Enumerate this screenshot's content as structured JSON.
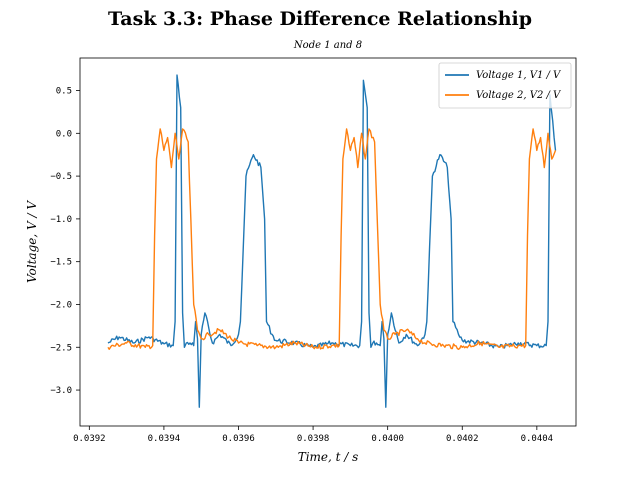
{
  "chart_data": {
    "type": "line",
    "title": "Task 3.3: Phase Difference Relationship",
    "subtitle": "Node 1 and 8",
    "xlabel": "Time, t / s",
    "ylabel": "Voltage, V / V",
    "xlim": [
      0.039175,
      0.040505
    ],
    "ylim": [
      -3.42,
      0.88
    ],
    "xticks": [
      0.0392,
      0.0394,
      0.0396,
      0.0398,
      0.04,
      0.0402,
      0.0404
    ],
    "xtick_labels": [
      "0.0392",
      "0.0394",
      "0.0396",
      "0.0398",
      "0.0400",
      "0.0402",
      "0.0404"
    ],
    "yticks": [
      0.5,
      0.0,
      -0.5,
      -1.0,
      -1.5,
      -2.0,
      -2.5,
      -3.0
    ],
    "ytick_labels": [
      "0.5",
      "0.0",
      "−0.5",
      "−1.0",
      "−1.5",
      "−2.0",
      "−2.5",
      "−3.0"
    ],
    "grid": false,
    "legend_position": "top-right",
    "series": [
      {
        "name": "Voltage 1, V1 / V",
        "color": "#1f77b4",
        "x": [
          0.03925,
          0.03928,
          0.03932,
          0.03936,
          0.0394,
          0.039425,
          0.03943,
          0.039435,
          0.039445,
          0.03945,
          0.039455,
          0.03946,
          0.03947,
          0.03948,
          0.039485,
          0.03949,
          0.039495,
          0.0395,
          0.03951,
          0.03953,
          0.03955,
          0.03958,
          0.0396,
          0.039605,
          0.03962,
          0.03964,
          0.03966,
          0.03967,
          0.039675,
          0.03969,
          0.0397,
          0.03975,
          0.0398,
          0.03985,
          0.0399,
          0.039925,
          0.03993,
          0.039935,
          0.039945,
          0.03995,
          0.039955,
          0.03996,
          0.03997,
          0.03998,
          0.039985,
          0.03999,
          0.039995,
          0.04,
          0.04001,
          0.04003,
          0.04005,
          0.04008,
          0.0401,
          0.040105,
          0.04012,
          0.04014,
          0.04016,
          0.04017,
          0.040175,
          0.04019,
          0.0402,
          0.04025,
          0.0403,
          0.04035,
          0.0404,
          0.040425,
          0.04043,
          0.040435,
          0.04045
        ],
        "values": [
          -2.45,
          -2.38,
          -2.45,
          -2.38,
          -2.46,
          -2.48,
          -2.2,
          0.68,
          0.3,
          -2.1,
          -2.5,
          -2.45,
          -2.45,
          -2.48,
          -2.2,
          -2.4,
          -3.2,
          -2.35,
          -2.1,
          -2.45,
          -2.35,
          -2.48,
          -2.35,
          -2.2,
          -0.5,
          -0.25,
          -0.4,
          -1.0,
          -2.2,
          -2.35,
          -2.42,
          -2.45,
          -2.5,
          -2.45,
          -2.48,
          -2.48,
          -2.2,
          0.62,
          0.3,
          -2.1,
          -2.5,
          -2.45,
          -2.45,
          -2.48,
          -2.2,
          -2.4,
          -3.2,
          -2.35,
          -2.1,
          -2.45,
          -2.35,
          -2.48,
          -2.35,
          -2.2,
          -0.5,
          -0.25,
          -0.4,
          -1.0,
          -2.2,
          -2.35,
          -2.42,
          -2.45,
          -2.5,
          -2.45,
          -2.48,
          -2.48,
          -2.2,
          0.45,
          -0.2
        ]
      },
      {
        "name": "Voltage 2, V2 / V",
        "color": "#ff7f0e",
        "x": [
          0.03925,
          0.0393,
          0.03935,
          0.03937,
          0.039375,
          0.03938,
          0.03939,
          0.0394,
          0.03941,
          0.03942,
          0.03943,
          0.03944,
          0.03945,
          0.039465,
          0.03948,
          0.03949,
          0.0395,
          0.03952,
          0.03955,
          0.03958,
          0.0396,
          0.03965,
          0.0397,
          0.03975,
          0.0398,
          0.03985,
          0.03987,
          0.039875,
          0.03988,
          0.03989,
          0.0399,
          0.03991,
          0.03992,
          0.03993,
          0.03994,
          0.03995,
          0.039965,
          0.03998,
          0.03999,
          0.04,
          0.04002,
          0.04005,
          0.04008,
          0.0401,
          0.04015,
          0.0402,
          0.04025,
          0.0403,
          0.04035,
          0.04037,
          0.040375,
          0.04038,
          0.04039,
          0.0404,
          0.04041,
          0.04042,
          0.04043,
          0.04044,
          0.04045
        ],
        "values": [
          -2.5,
          -2.45,
          -2.5,
          -2.48,
          -1.2,
          -0.3,
          0.05,
          -0.2,
          -0.05,
          -0.4,
          0.0,
          -0.3,
          0.05,
          -0.1,
          -2.0,
          -2.3,
          -2.4,
          -2.35,
          -2.3,
          -2.4,
          -2.45,
          -2.48,
          -2.5,
          -2.45,
          -2.5,
          -2.48,
          -2.48,
          -1.2,
          -0.3,
          0.05,
          -0.2,
          -0.05,
          -0.4,
          0.0,
          -0.3,
          0.05,
          -0.1,
          -2.0,
          -2.3,
          -2.4,
          -2.35,
          -2.3,
          -2.4,
          -2.45,
          -2.48,
          -2.5,
          -2.45,
          -2.5,
          -2.48,
          -2.48,
          -1.2,
          -0.3,
          0.05,
          -0.2,
          -0.05,
          -0.4,
          0.0,
          -0.3,
          -0.2
        ]
      }
    ]
  }
}
